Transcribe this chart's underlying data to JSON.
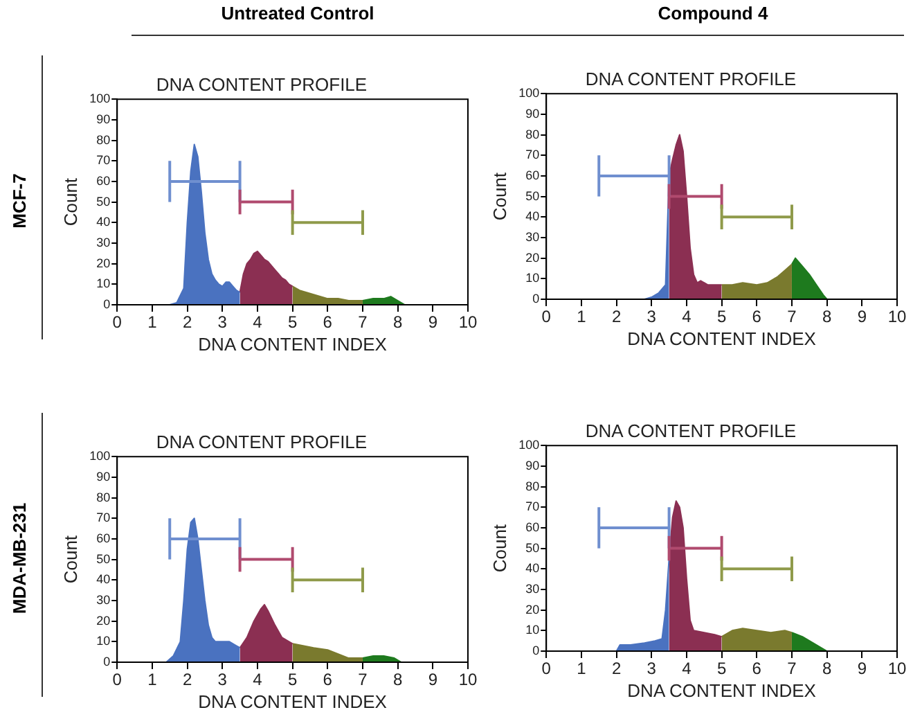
{
  "chart_data": [
    {
      "type": "area",
      "title": "DNA CONTENT PROFILE",
      "xlabel": "DNA CONTENT INDEX",
      "ylabel": "Count",
      "annotations": [
        "Untreated Control",
        "MCF-7"
      ],
      "xlim": [
        0,
        10
      ],
      "xticks": [
        0,
        1,
        2,
        3,
        4,
        5,
        6,
        7,
        8,
        9,
        10
      ],
      "ylim": [
        0,
        100
      ],
      "yticks": [
        0,
        10,
        20,
        30,
        40,
        50,
        60,
        70,
        80,
        90,
        100
      ],
      "grid": false,
      "legend": false,
      "series": [
        {
          "color": "#4a72c0",
          "x": [
            1.5,
            1.7,
            1.9,
            2.0,
            2.1,
            2.2,
            2.3,
            2.4,
            2.5,
            2.6,
            2.7,
            2.8,
            2.9,
            3.0,
            3.1,
            3.2,
            3.3,
            3.4,
            3.5
          ],
          "values": [
            0,
            1,
            8,
            40,
            65,
            78,
            72,
            55,
            35,
            22,
            15,
            12,
            10,
            9,
            11,
            11,
            9,
            7,
            6
          ]
        },
        {
          "color": "#8b2f52",
          "x": [
            3.5,
            3.6,
            3.7,
            3.8,
            3.9,
            4.0,
            4.1,
            4.2,
            4.3,
            4.4,
            4.5,
            4.6,
            4.7,
            4.8,
            4.9,
            5.0
          ],
          "values": [
            6,
            15,
            20,
            22,
            25,
            26,
            24,
            22,
            21,
            19,
            17,
            15,
            13,
            12,
            10,
            9
          ]
        },
        {
          "color": "#7a7a2e",
          "x": [
            5.0,
            5.2,
            5.4,
            5.6,
            5.8,
            6.0,
            6.3,
            6.6,
            7.0
          ],
          "values": [
            9,
            7,
            6,
            5,
            4,
            3,
            3,
            2,
            2
          ]
        },
        {
          "color": "#1e7a1e",
          "x": [
            7.0,
            7.3,
            7.6,
            7.8,
            8.0,
            8.2
          ],
          "values": [
            2,
            3,
            3,
            4,
            2,
            0
          ]
        },
        {
          "type": "line",
          "color": "#6f8fcf",
          "x": [
            1.5,
            3.5
          ],
          "values": [
            60,
            60
          ],
          "errors": [
            10,
            10
          ]
        },
        {
          "type": "line",
          "color": "#b04a6e",
          "x": [
            3.5,
            5.0
          ],
          "values": [
            50,
            50
          ],
          "errors": [
            6,
            6
          ]
        },
        {
          "type": "line",
          "color": "#8f9a4a",
          "x": [
            5.0,
            7.0
          ],
          "values": [
            40,
            40
          ],
          "errors": [
            6,
            6
          ]
        }
      ]
    },
    {
      "type": "area",
      "title": "DNA CONTENT PROFILE",
      "xlabel": "DNA CONTENT INDEX",
      "ylabel": "Count",
      "annotations": [
        "Compound 4"
      ],
      "xlim": [
        0,
        10
      ],
      "xticks": [
        0,
        1,
        2,
        3,
        4,
        5,
        6,
        7,
        8,
        9,
        10
      ],
      "ylim": [
        0,
        100
      ],
      "yticks": [
        0,
        10,
        20,
        30,
        40,
        50,
        60,
        70,
        80,
        90,
        100
      ],
      "grid": false,
      "legend": false,
      "series": [
        {
          "color": "#4a72c0",
          "x": [
            2.8,
            3.0,
            3.2,
            3.4,
            3.5
          ],
          "values": [
            0,
            1,
            3,
            7,
            60
          ]
        },
        {
          "color": "#8b2f52",
          "x": [
            3.5,
            3.6,
            3.7,
            3.8,
            3.9,
            4.0,
            4.1,
            4.2,
            4.3,
            4.4,
            4.6,
            4.8,
            5.0
          ],
          "values": [
            60,
            68,
            75,
            80,
            72,
            50,
            25,
            12,
            8,
            9,
            7,
            7,
            7
          ]
        },
        {
          "color": "#7a7a2e",
          "x": [
            5.0,
            5.3,
            5.6,
            6.0,
            6.3,
            6.6,
            6.8,
            7.0
          ],
          "values": [
            7,
            7,
            8,
            7,
            8,
            11,
            14,
            17
          ]
        },
        {
          "color": "#1e7a1e",
          "x": [
            7.0,
            7.1,
            7.3,
            7.5,
            7.7,
            7.9,
            8.0
          ],
          "values": [
            17,
            20,
            16,
            12,
            7,
            2,
            0
          ]
        },
        {
          "type": "line",
          "color": "#6f8fcf",
          "x": [
            1.5,
            3.5
          ],
          "values": [
            60,
            60
          ],
          "errors": [
            10,
            10
          ]
        },
        {
          "type": "line",
          "color": "#b04a6e",
          "x": [
            3.5,
            5.0
          ],
          "values": [
            50,
            50
          ],
          "errors": [
            6,
            6
          ]
        },
        {
          "type": "line",
          "color": "#8f9a4a",
          "x": [
            5.0,
            7.0
          ],
          "values": [
            40,
            40
          ],
          "errors": [
            6,
            6
          ]
        }
      ]
    },
    {
      "type": "area",
      "title": "DNA CONTENT PROFILE",
      "xlabel": "DNA CONTENT INDEX",
      "ylabel": "Count",
      "annotations": [
        "MDA-MB-231"
      ],
      "xlim": [
        0,
        10
      ],
      "xticks": [
        0,
        1,
        2,
        3,
        4,
        5,
        6,
        7,
        8,
        9,
        10
      ],
      "ylim": [
        0,
        100
      ],
      "yticks": [
        0,
        10,
        20,
        30,
        40,
        50,
        60,
        70,
        80,
        90,
        100
      ],
      "grid": false,
      "legend": false,
      "series": [
        {
          "color": "#4a72c0",
          "x": [
            1.4,
            1.6,
            1.8,
            1.9,
            2.0,
            2.1,
            2.2,
            2.3,
            2.4,
            2.5,
            2.6,
            2.7,
            2.8,
            3.0,
            3.2,
            3.4,
            3.5
          ],
          "values": [
            0,
            3,
            10,
            30,
            55,
            68,
            70,
            60,
            45,
            30,
            18,
            12,
            10,
            10,
            10,
            8,
            7
          ]
        },
        {
          "color": "#8b2f52",
          "x": [
            3.5,
            3.7,
            3.9,
            4.1,
            4.2,
            4.3,
            4.5,
            4.7,
            4.9,
            5.0
          ],
          "values": [
            7,
            12,
            20,
            26,
            28,
            25,
            18,
            12,
            10,
            9
          ]
        },
        {
          "color": "#7a7a2e",
          "x": [
            5.0,
            5.3,
            5.6,
            6.0,
            6.3,
            6.6,
            7.0
          ],
          "values": [
            9,
            8,
            7,
            6,
            4,
            2,
            2
          ]
        },
        {
          "color": "#1e7a1e",
          "x": [
            7.0,
            7.3,
            7.6,
            7.9,
            8.1
          ],
          "values": [
            2,
            3,
            3,
            2,
            0
          ]
        },
        {
          "type": "line",
          "color": "#6f8fcf",
          "x": [
            1.5,
            3.5
          ],
          "values": [
            60,
            60
          ],
          "errors": [
            10,
            10
          ]
        },
        {
          "type": "line",
          "color": "#b04a6e",
          "x": [
            3.5,
            5.0
          ],
          "values": [
            50,
            50
          ],
          "errors": [
            6,
            6
          ]
        },
        {
          "type": "line",
          "color": "#8f9a4a",
          "x": [
            5.0,
            7.0
          ],
          "values": [
            40,
            40
          ],
          "errors": [
            6,
            6
          ]
        }
      ]
    },
    {
      "type": "area",
      "title": "DNA CONTENT PROFILE",
      "xlabel": "DNA CONTENT INDEX",
      "ylabel": "Count",
      "xlim": [
        0,
        10
      ],
      "xticks": [
        0,
        1,
        2,
        3,
        4,
        5,
        6,
        7,
        8,
        9,
        10
      ],
      "ylim": [
        0,
        100
      ],
      "yticks": [
        0,
        10,
        20,
        30,
        40,
        50,
        60,
        70,
        80,
        90,
        100
      ],
      "grid": false,
      "legend": false,
      "series": [
        {
          "color": "#4a72c0",
          "x": [
            2.0,
            2.1,
            2.4,
            2.8,
            3.1,
            3.3,
            3.4,
            3.5
          ],
          "values": [
            0,
            3,
            3,
            4,
            5,
            6,
            20,
            45
          ]
        },
        {
          "color": "#8b2f52",
          "x": [
            3.5,
            3.6,
            3.7,
            3.8,
            3.9,
            4.0,
            4.1,
            4.2,
            4.5,
            4.8,
            5.0
          ],
          "values": [
            45,
            65,
            73,
            70,
            60,
            35,
            15,
            10,
            9,
            8,
            7
          ]
        },
        {
          "color": "#7a7a2e",
          "x": [
            5.0,
            5.3,
            5.6,
            6.0,
            6.4,
            6.8,
            7.0
          ],
          "values": [
            7,
            10,
            11,
            10,
            9,
            10,
            9
          ]
        },
        {
          "color": "#1e7a1e",
          "x": [
            7.0,
            7.3,
            7.6,
            7.9,
            8.0
          ],
          "values": [
            9,
            7,
            4,
            1,
            0
          ]
        },
        {
          "type": "line",
          "color": "#6f8fcf",
          "x": [
            1.5,
            3.5
          ],
          "values": [
            60,
            60
          ],
          "errors": [
            10,
            10
          ]
        },
        {
          "type": "line",
          "color": "#b04a6e",
          "x": [
            3.5,
            5.0
          ],
          "values": [
            50,
            50
          ],
          "errors": [
            6,
            6
          ]
        },
        {
          "type": "line",
          "color": "#8f9a4a",
          "x": [
            5.0,
            7.0
          ],
          "values": [
            40,
            40
          ],
          "errors": [
            6,
            6
          ]
        }
      ]
    }
  ]
}
